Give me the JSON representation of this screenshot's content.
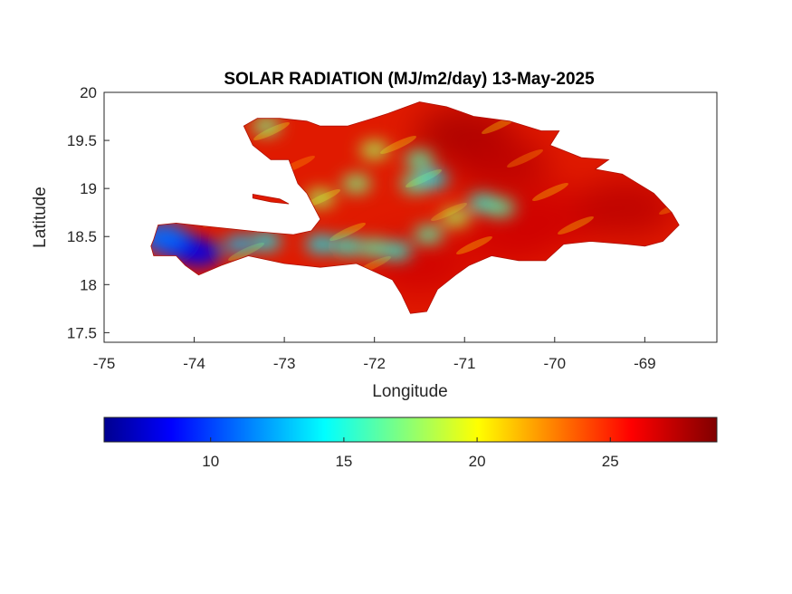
{
  "title": "SOLAR RADIATION (MJ/m2/day) 13-May-2025",
  "map": {
    "region": "Hispaniola",
    "xlabel": "Longitude",
    "ylabel": "Latitude",
    "xlim": [
      -75,
      -68.2
    ],
    "ylim": [
      17.4,
      20
    ],
    "xticks": [
      -75,
      -74,
      -73,
      -72,
      -71,
      -70,
      -69
    ],
    "xtick_labels": [
      "-75",
      "-74",
      "-73",
      "-72",
      "-71",
      "-70",
      "-69"
    ],
    "yticks": [
      17.5,
      18,
      18.5,
      19,
      19.5,
      20
    ],
    "ytick_labels": [
      "17.5",
      "18",
      "18.5",
      "19",
      "19.5",
      "20"
    ],
    "colormap": "jet",
    "land_outline": [
      [
        -74.45,
        18.47
      ],
      [
        -74.4,
        18.62
      ],
      [
        -74.2,
        18.64
      ],
      [
        -73.8,
        18.6
      ],
      [
        -73.3,
        18.55
      ],
      [
        -72.9,
        18.52
      ],
      [
        -72.7,
        18.56
      ],
      [
        -72.6,
        18.68
      ],
      [
        -72.75,
        18.95
      ],
      [
        -72.85,
        19.05
      ],
      [
        -72.95,
        19.3
      ],
      [
        -73.15,
        19.3
      ],
      [
        -73.35,
        19.45
      ],
      [
        -73.45,
        19.65
      ],
      [
        -73.3,
        19.73
      ],
      [
        -73.05,
        19.73
      ],
      [
        -72.75,
        19.7
      ],
      [
        -72.6,
        19.65
      ],
      [
        -72.3,
        19.65
      ],
      [
        -72.05,
        19.72
      ],
      [
        -71.85,
        19.78
      ],
      [
        -71.5,
        19.9
      ],
      [
        -71.2,
        19.85
      ],
      [
        -70.9,
        19.75
      ],
      [
        -70.5,
        19.7
      ],
      [
        -70.15,
        19.6
      ],
      [
        -69.95,
        19.6
      ],
      [
        -70.05,
        19.45
      ],
      [
        -69.7,
        19.32
      ],
      [
        -69.4,
        19.3
      ],
      [
        -69.55,
        19.2
      ],
      [
        -69.25,
        19.15
      ],
      [
        -68.9,
        18.95
      ],
      [
        -68.7,
        18.75
      ],
      [
        -68.62,
        18.62
      ],
      [
        -68.8,
        18.45
      ],
      [
        -69.0,
        18.4
      ],
      [
        -69.2,
        18.42
      ],
      [
        -69.6,
        18.45
      ],
      [
        -69.9,
        18.42
      ],
      [
        -70.1,
        18.25
      ],
      [
        -70.4,
        18.25
      ],
      [
        -70.7,
        18.3
      ],
      [
        -70.95,
        18.2
      ],
      [
        -71.1,
        18.1
      ],
      [
        -71.3,
        17.95
      ],
      [
        -71.42,
        17.72
      ],
      [
        -71.6,
        17.7
      ],
      [
        -71.7,
        17.9
      ],
      [
        -71.8,
        18.05
      ],
      [
        -72.2,
        18.22
      ],
      [
        -72.6,
        18.18
      ],
      [
        -73.0,
        18.22
      ],
      [
        -73.4,
        18.3
      ],
      [
        -73.7,
        18.2
      ],
      [
        -73.95,
        18.1
      ],
      [
        -74.1,
        18.2
      ],
      [
        -74.2,
        18.3
      ],
      [
        -74.45,
        18.3
      ],
      [
        -74.48,
        18.4
      ]
    ],
    "island_outline": [
      [
        -73.35,
        18.94
      ],
      [
        -73.05,
        18.89
      ],
      [
        -72.95,
        18.84
      ],
      [
        -73.15,
        18.86
      ],
      [
        -73.35,
        18.9
      ]
    ],
    "cool_spots": [
      {
        "lon": -74.2,
        "lat": 18.42,
        "value": 9
      },
      {
        "lon": -73.95,
        "lat": 18.33,
        "value": 8
      },
      {
        "lon": -74.35,
        "lat": 18.5,
        "value": 11
      },
      {
        "lon": -73.5,
        "lat": 18.42,
        "value": 13
      },
      {
        "lon": -73.2,
        "lat": 18.45,
        "value": 14
      },
      {
        "lon": -72.6,
        "lat": 18.42,
        "value": 14
      },
      {
        "lon": -72.3,
        "lat": 18.4,
        "value": 15
      },
      {
        "lon": -72.0,
        "lat": 18.38,
        "value": 16
      },
      {
        "lon": -71.75,
        "lat": 18.35,
        "value": 15
      },
      {
        "lon": -71.4,
        "lat": 18.52,
        "value": 16
      },
      {
        "lon": -71.55,
        "lat": 19.05,
        "value": 16
      },
      {
        "lon": -71.35,
        "lat": 19.1,
        "value": 14
      },
      {
        "lon": -71.5,
        "lat": 19.3,
        "value": 16
      },
      {
        "lon": -70.8,
        "lat": 18.85,
        "value": 15
      },
      {
        "lon": -70.6,
        "lat": 18.8,
        "value": 16
      },
      {
        "lon": -72.2,
        "lat": 19.05,
        "value": 17
      },
      {
        "lon": -72.0,
        "lat": 19.4,
        "value": 18
      },
      {
        "lon": -73.2,
        "lat": 19.65,
        "value": 17
      },
      {
        "lon": -72.6,
        "lat": 18.9,
        "value": 18
      },
      {
        "lon": -71.1,
        "lat": 18.7,
        "value": 18
      }
    ],
    "hot_spots": [
      {
        "lon": -71.0,
        "lat": 19.55,
        "value": 28
      },
      {
        "lon": -70.6,
        "lat": 19.25,
        "value": 27.5
      },
      {
        "lon": -70.0,
        "lat": 18.7,
        "value": 27
      },
      {
        "lon": -69.2,
        "lat": 18.8,
        "value": 27.5
      },
      {
        "lon": -71.5,
        "lat": 18.2,
        "value": 27
      },
      {
        "lon": -70.5,
        "lat": 18.5,
        "value": 27
      }
    ]
  },
  "colorbar": {
    "min": 6,
    "max": 29,
    "ticks": [
      10,
      15,
      20,
      25
    ],
    "tick_labels": [
      "10",
      "15",
      "20",
      "25"
    ]
  }
}
